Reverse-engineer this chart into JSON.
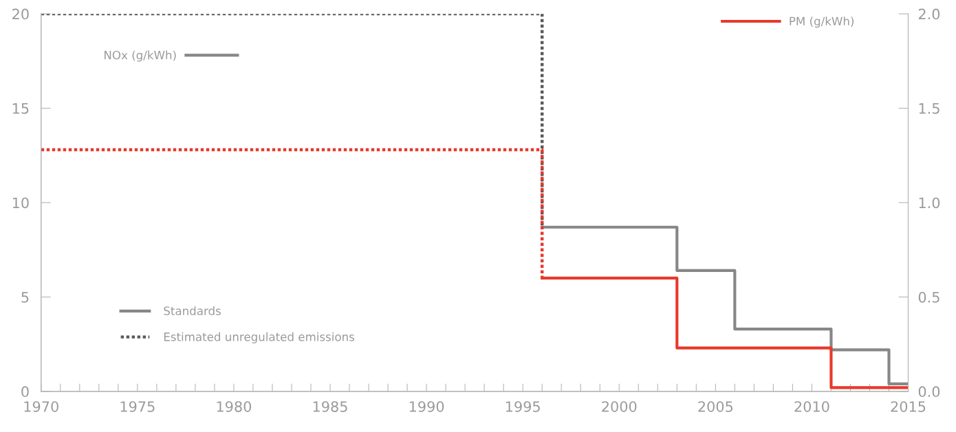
{
  "chart_data": {
    "type": "step",
    "ylabel": "NOx (g/kWh)",
    "xlim": [
      1970,
      2015
    ],
    "xticks": [
      1970,
      {
        "value": 1971,
        "label": null
      },
      {
        "value": 1972,
        "label": null
      },
      {
        "value": 1973,
        "label": null
      },
      {
        "value": 1974,
        "label": null
      },
      1975,
      {
        "value": 1976,
        "label": null
      },
      {
        "value": 1977,
        "label": null
      },
      {
        "value": 1978,
        "label": null
      },
      {
        "value": 1979,
        "label": null
      },
      1980,
      {
        "value": 1981,
        "label": null
      },
      {
        "value": 1982,
        "label": null
      },
      {
        "value": 1983,
        "label": null
      },
      {
        "value": 1984,
        "label": null
      },
      1985,
      {
        "value": 1986,
        "label": null
      },
      {
        "value": 1987,
        "label": null
      },
      {
        "value": 1988,
        "label": null
      },
      {
        "value": 1989,
        "label": null
      },
      1990,
      {
        "value": 1991,
        "label": null
      },
      {
        "value": 1992,
        "label": null
      },
      {
        "value": 1993,
        "label": null
      },
      {
        "value": 1994,
        "label": null
      },
      1995,
      {
        "value": 1996,
        "label": null
      },
      {
        "value": 1997,
        "label": null
      },
      {
        "value": 1998,
        "label": null
      },
      {
        "value": 1999,
        "label": null
      },
      2000,
      {
        "value": 2001,
        "label": null
      },
      {
        "value": 2002,
        "label": null
      },
      {
        "value": 2003,
        "label": null
      },
      {
        "value": 2004,
        "label": null
      },
      2005,
      {
        "value": 2006,
        "label": null
      },
      {
        "value": 2007,
        "label": null
      },
      {
        "value": 2008,
        "label": null
      },
      {
        "value": 2009,
        "label": null
      },
      2010,
      {
        "value": 2011,
        "label": null
      },
      {
        "value": 2012,
        "label": null
      },
      {
        "value": 2013,
        "label": null
      },
      {
        "value": 2014,
        "label": null
      },
      2015
    ],
    "ylim": [
      0,
      20
    ],
    "yticks": [
      0,
      5,
      10,
      15,
      20
    ],
    "y2lim": [
      0,
      2.0
    ],
    "y2ticks": [
      {
        "value": 0,
        "label": "0.0"
      },
      0.5,
      {
        "value": 1,
        "label": "1.0"
      },
      1.5,
      {
        "value": 2,
        "label": "2.0"
      }
    ],
    "grid": false,
    "legend": "top right",
    "series": [
      {
        "name": "Standards",
        "color": "#878787",
        "line_style": "solid",
        "x": [
          1996,
          2003,
          2006,
          2011,
          2014,
          2015
        ],
        "values": [
          8.7,
          6.4,
          3.3,
          2.2,
          0.4,
          0.4
        ]
      },
      {
        "name": "Estimated unregulated emissions",
        "color": "#5a5a5a",
        "line_style": "dotted",
        "x": [
          1970,
          1996
        ],
        "values": [
          20,
          8.7
        ]
      },
      {
        "name": "PM (g/kWh)",
        "color": "#e8392b",
        "line_style": "solid",
        "axis": "y2",
        "x": [
          1996,
          2003,
          2011,
          2015
        ],
        "values": [
          0.6,
          0.23,
          0.02,
          0.02
        ]
      },
      {
        "color": "#e8392b",
        "line_style": "dotted",
        "axis": "y2",
        "x": [
          1970,
          1996
        ],
        "values": [
          1.28,
          0.6
        ]
      }
    ]
  }
}
